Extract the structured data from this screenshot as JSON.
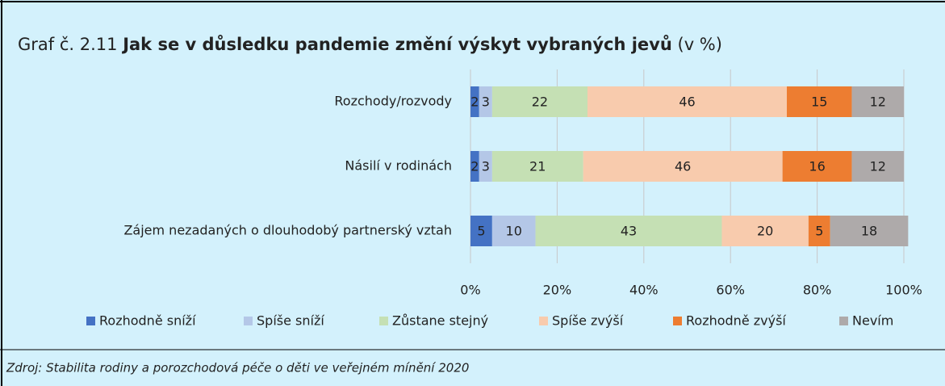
{
  "chart_data": {
    "type": "stacked_bar_horizontal",
    "title_prefix": "Graf č. 2.11",
    "title": "Jak se v důsledku pandemie změní výskyt vybraných jevů",
    "title_suffix": "(v %)",
    "source": "Zdroj: Stabilita rodiny a porozchodová péče o děti ve veřejném mínění 2020",
    "categories": [
      "Rozchody/rozvody",
      "Násilí v rodinách",
      "Zájem nezadaných o dlouhodobý partnerský vztah"
    ],
    "series": [
      {
        "name": "Rozhodně sníží",
        "color": "#4472c4",
        "values": [
          2,
          2,
          5
        ]
      },
      {
        "name": "Spíše sníží",
        "color": "#b4c7e7",
        "values": [
          3,
          3,
          10
        ]
      },
      {
        "name": "Zůstane stejný",
        "color": "#c5e0b4",
        "values": [
          22,
          21,
          43
        ]
      },
      {
        "name": "Spíše zvýší",
        "color": "#f8cbad",
        "values": [
          46,
          46,
          20
        ]
      },
      {
        "name": "Rozhodně zvýší",
        "color": "#ed7d31",
        "values": [
          15,
          16,
          5
        ]
      },
      {
        "name": "Nevím",
        "color": "#aeaaaa",
        "values": [
          12,
          12,
          18
        ]
      }
    ],
    "xlim": [
      0,
      100
    ],
    "xticks": [
      {
        "value": 0,
        "label": "0%"
      },
      {
        "value": 20,
        "label": "20%"
      },
      {
        "value": 40,
        "label": "40%"
      },
      {
        "value": 60,
        "label": "60%"
      },
      {
        "value": 80,
        "label": "80%"
      },
      {
        "value": 100,
        "label": "100%"
      }
    ],
    "grid": true,
    "legend": "bottom"
  }
}
